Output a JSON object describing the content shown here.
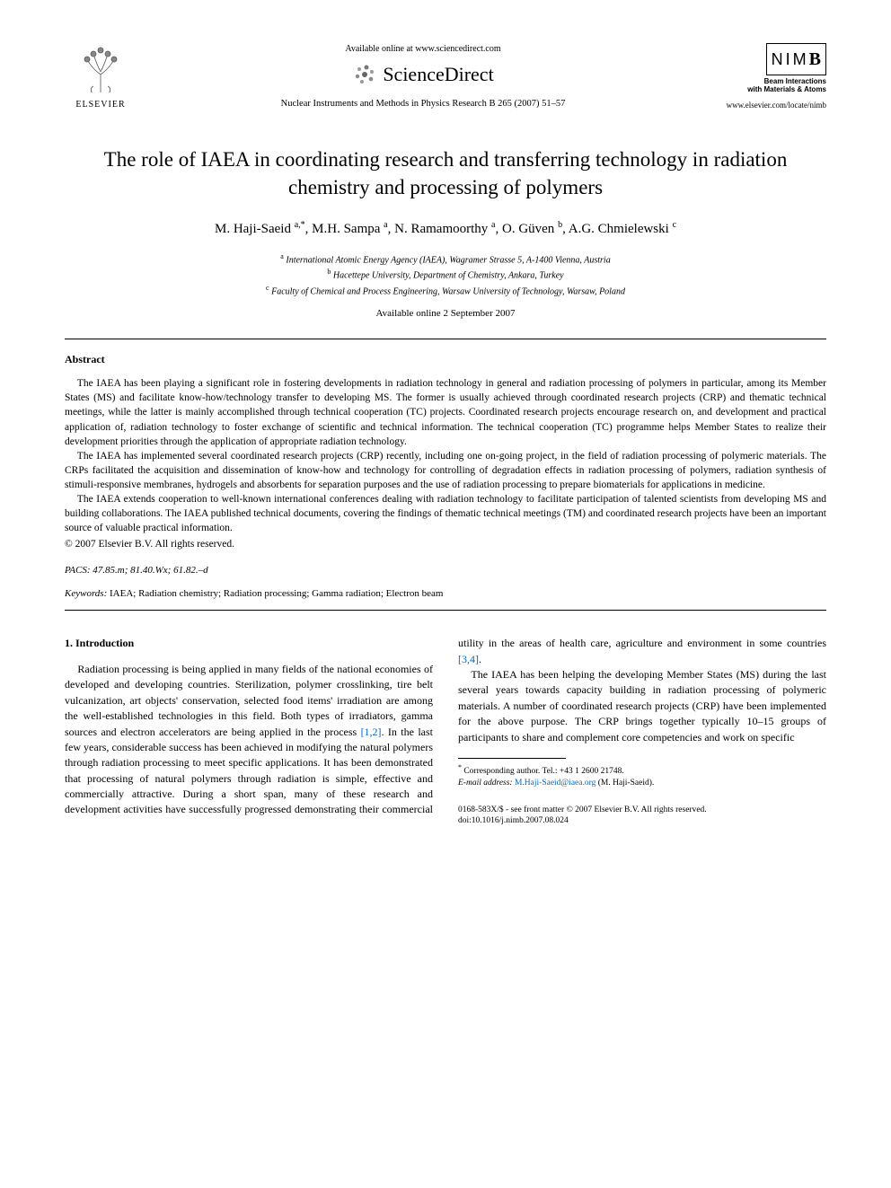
{
  "header": {
    "elsevier_label": "ELSEVIER",
    "available_online": "Available online at www.sciencedirect.com",
    "sd_brand": "ScienceDirect",
    "journal_ref": "Nuclear Instruments and Methods in Physics Research B 265 (2007) 51–57",
    "nimb_letters": "NIM",
    "nimb_b": "B",
    "nimb_sub1": "Beam Interactions",
    "nimb_sub2": "with Materials & Atoms",
    "nimb_url": "www.elsevier.com/locate/nimb"
  },
  "title": "The role of IAEA in coordinating research and transferring technology in radiation chemistry and processing of polymers",
  "authors_html": "M. Haji-Saeid <sup>a,*</sup>, M.H. Sampa <sup>a</sup>, N. Ramamoorthy <sup>a</sup>, O. Güven <sup>b</sup>, A.G. Chmielewski <sup>c</sup>",
  "affiliations": {
    "a": "International Atomic Energy Agency (IAEA), Wagramer Strasse 5, A-1400 Vienna, Austria",
    "b": "Hacettepe University, Department of Chemistry, Ankara, Turkey",
    "c": "Faculty of Chemical and Process Engineering, Warsaw University of Technology, Warsaw, Poland"
  },
  "available_date": "Available online 2 September 2007",
  "abstract": {
    "heading": "Abstract",
    "p1": "The IAEA has been playing a significant role in fostering developments in radiation technology in general and radiation processing of polymers in particular, among its Member States (MS) and facilitate know-how/technology transfer to developing MS. The former is usually achieved through coordinated research projects (CRP) and thematic technical meetings, while the latter is mainly accomplished through technical cooperation (TC) projects. Coordinated research projects encourage research on, and development and practical application of, radiation technology to foster exchange of scientific and technical information. The technical cooperation (TC) programme helps Member States to realize their development priorities through the application of appropriate radiation technology.",
    "p2": "The IAEA has implemented several coordinated research projects (CRP) recently, including one on-going project, in the field of radiation processing of polymeric materials. The CRPs facilitated the acquisition and dissemination of know-how and technology for controlling of degradation effects in radiation processing of polymers, radiation synthesis of stimuli-responsive membranes, hydrogels and absorbents for separation purposes and the use of radiation processing to prepare biomaterials for applications in medicine.",
    "p3": "The IAEA extends cooperation to well-known international conferences dealing with radiation technology to facilitate participation of talented scientists from developing MS and building collaborations. The IAEA published technical documents, covering the findings of thematic technical meetings (TM) and coordinated research projects have been an important source of valuable practical information.",
    "copyright": "© 2007 Elsevier B.V. All rights reserved."
  },
  "pacs": {
    "label": "PACS:",
    "values": "47.85.m; 81.40.Wx; 61.82.–d"
  },
  "keywords": {
    "label": "Keywords:",
    "values": "IAEA; Radiation chemistry; Radiation processing; Gamma radiation; Electron beam"
  },
  "section1": {
    "heading": "1. Introduction",
    "p1_a": "Radiation processing is being applied in many fields of the national economies of developed and developing countries. Sterilization, polymer crosslinking, tire belt vulcanization, art objects' conservation, selected food items' irradiation are among the well-established technologies in this field. Both types of irradiators, gamma sources and electron accelerators are being applied in the process ",
    "cite1": "[1,2]",
    "p1_b": ". In the last few years, considerable success has been achieved in modifying the natural polymers through radia",
    "p1_c": "tion processing to meet specific applications. It has been demonstrated that processing of natural polymers through radiation is simple, effective and commercially attractive. During a short span, many of these research and development activities have successfully progressed demonstrating their commercial utility in the areas of health care, agriculture and environment in some countries ",
    "cite2": "[3,4]",
    "p1_d": ".",
    "p2": "The IAEA has been helping the developing Member States (MS) during the last several years towards capacity building in radiation processing of polymeric materials. A number of coordinated research projects (CRP) have been implemented for the above purpose. The CRP brings together typically 10–15 groups of participants to share and complement core competencies and work on specific"
  },
  "footnote": {
    "corr": "Corresponding author. Tel.: +43 1 2600 21748.",
    "email_label": "E-mail address:",
    "email": "M.Haji-Saeid@iaea.org",
    "email_who": "(M. Haji-Saeid)."
  },
  "front_matter": {
    "line1": "0168-583X/$ - see front matter © 2007 Elsevier B.V. All rights reserved.",
    "line2": "doi:10.1016/j.nimb.2007.08.024"
  },
  "colors": {
    "link": "#0066cc",
    "text": "#000000",
    "bg": "#ffffff"
  }
}
